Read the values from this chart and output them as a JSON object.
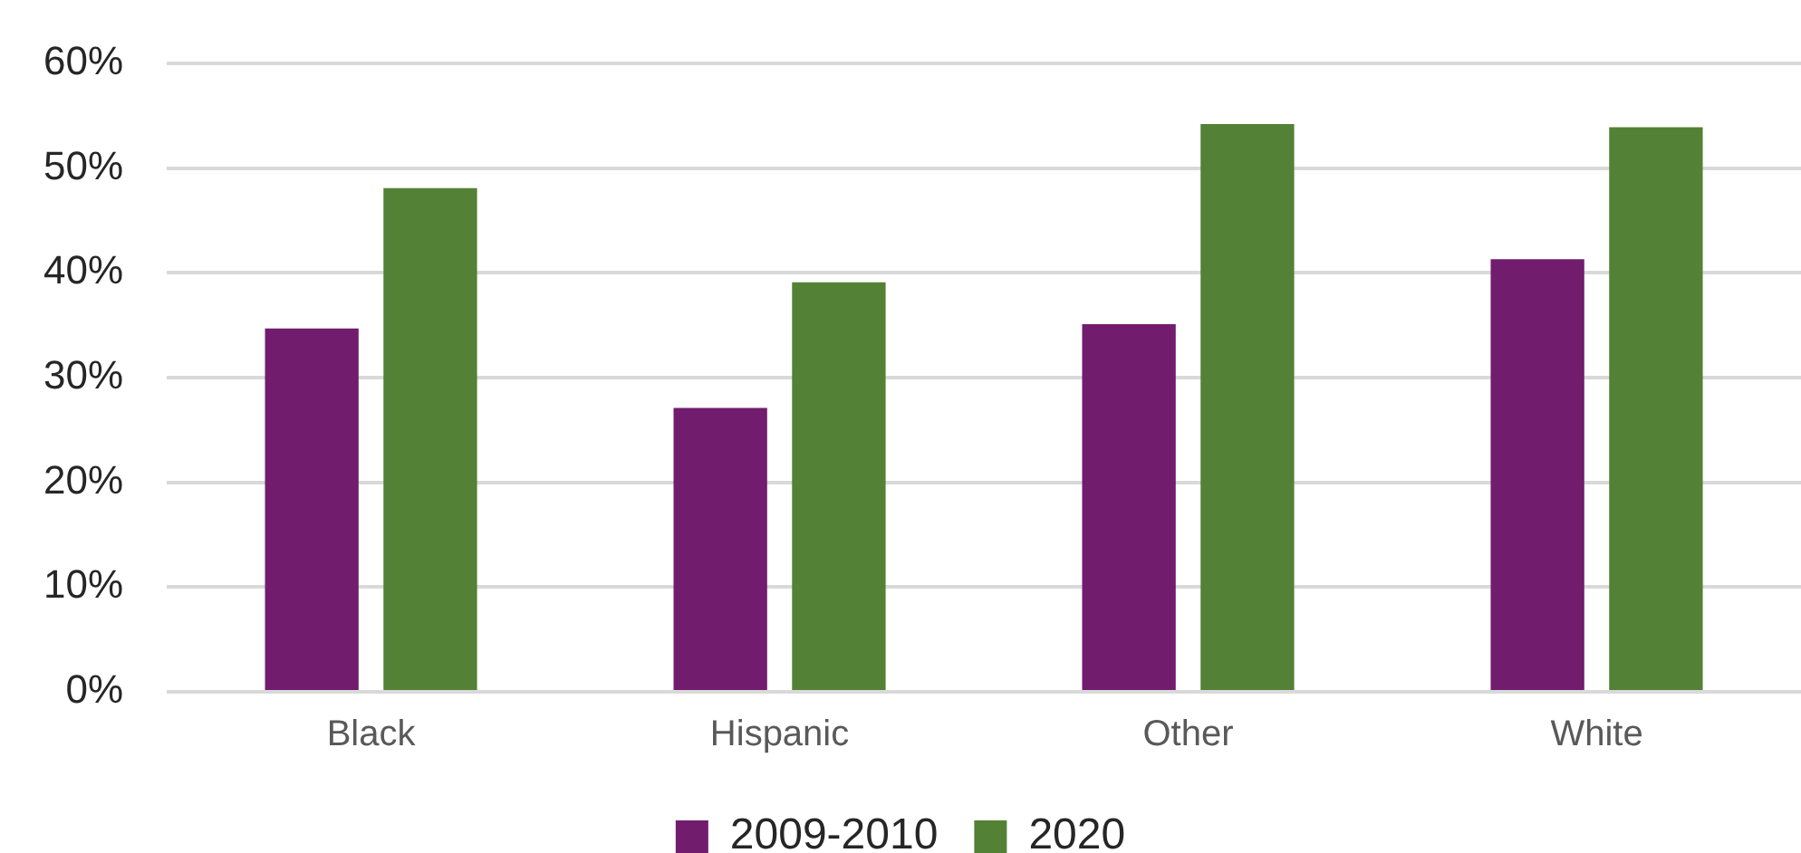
{
  "chart_data": {
    "type": "bar",
    "categories": [
      "Black",
      "Hispanic",
      "Other",
      "White"
    ],
    "series": [
      {
        "name": "2009-2010",
        "color": "#721c6e",
        "values": [
          34.7,
          27.1,
          35.1,
          41.3
        ]
      },
      {
        "name": "2020",
        "color": "#538135",
        "values": [
          48.1,
          39.1,
          54.2,
          53.9
        ]
      }
    ],
    "ylim": [
      0,
      60
    ],
    "yticks": [
      {
        "value": 0,
        "label": "0%"
      },
      {
        "value": 10,
        "label": "10%"
      },
      {
        "value": 20,
        "label": "20%"
      },
      {
        "value": 30,
        "label": "30%"
      },
      {
        "value": 40,
        "label": "40%"
      },
      {
        "value": 50,
        "label": "50%"
      },
      {
        "value": 60,
        "label": "60%"
      }
    ],
    "grid": "y",
    "legend": "bottom"
  }
}
